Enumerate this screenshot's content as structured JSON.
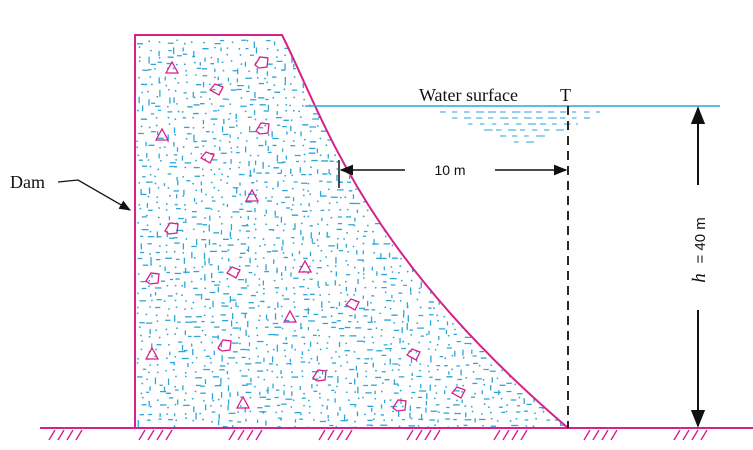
{
  "labels": {
    "dam": "Dam",
    "water_surface": "Water surface",
    "point": "T",
    "width": "10 m",
    "height_symbol": "h",
    "height_value": "=  40 m"
  },
  "colors": {
    "dam_outline": "#d6208a",
    "concrete_dots": "#2aa6d8",
    "aggregate": "#d6208a",
    "water_line": "#2aa6d8",
    "ground": "#d6208a",
    "ink": "#111111"
  }
}
